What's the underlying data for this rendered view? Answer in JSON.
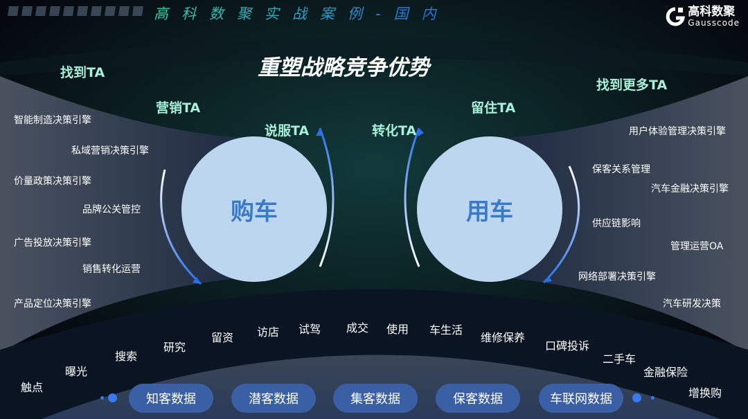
{
  "header": {
    "title": "高科数聚实战案例-国内",
    "logo_cn": "高科数聚",
    "logo_en": "Gausscode"
  },
  "title": "重塑战略竞争优势",
  "ta": {
    "find": "找到TA",
    "market": "营销TA",
    "persuade": "说服TA",
    "convert": "转化TA",
    "retain": "留住TA",
    "find_more": "找到更多TA"
  },
  "circles": {
    "buy": "购车",
    "use": "用车"
  },
  "left_labels": [
    "智能制造决策引擎",
    "私域营销决策引擎",
    "价量政策决策引擎",
    "品牌公关管控",
    "广告投放决策引擎",
    "销售转化运营",
    "产品定位决策引擎"
  ],
  "right_labels": [
    "用户体验管理决策引擎",
    "保客关系管理",
    "汽车金融决策引擎",
    "供应链影响",
    "管理运营OA",
    "网络部署决策引擎",
    "汽车研发决策"
  ],
  "journey": [
    "触点",
    "曝光",
    "搜索",
    "研究",
    "留资",
    "访店",
    "试驾",
    "成交",
    "使用",
    "车生活",
    "维修保养",
    "口碑投诉",
    "二手车",
    "金融保险",
    "增换购"
  ],
  "data_pills": [
    "知客数据",
    "潜客数据",
    "集客数据",
    "保客数据",
    "车联网数据"
  ],
  "colors": {
    "circle": "#bcd6ef",
    "circle_text": "#3a7bc8",
    "ta_text": "#a8f0d8",
    "pill": "#3b5fa5",
    "arrow": "#2a6fe8"
  }
}
